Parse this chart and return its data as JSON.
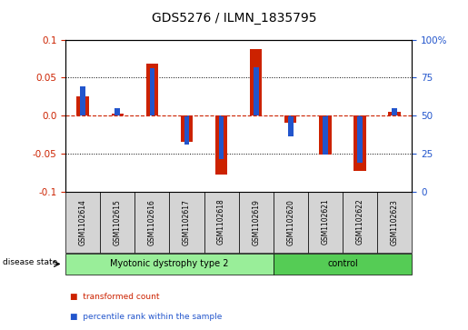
{
  "title": "GDS5276 / ILMN_1835795",
  "samples": [
    "GSM1102614",
    "GSM1102615",
    "GSM1102616",
    "GSM1102617",
    "GSM1102618",
    "GSM1102619",
    "GSM1102620",
    "GSM1102621",
    "GSM1102622",
    "GSM1102623"
  ],
  "red_values": [
    0.025,
    0.002,
    0.068,
    -0.035,
    -0.078,
    0.088,
    -0.01,
    -0.052,
    -0.073,
    0.005
  ],
  "blue_values": [
    0.038,
    0.01,
    0.062,
    -0.038,
    -0.058,
    0.063,
    -0.028,
    -0.052,
    -0.062,
    0.01
  ],
  "red_color": "#cc2200",
  "blue_color": "#2255cc",
  "ylim": [
    -0.1,
    0.1
  ],
  "yticks_left": [
    -0.1,
    -0.05,
    0.0,
    0.05,
    0.1
  ],
  "yticks_right_vals": [
    -0.1,
    -0.05,
    0.0,
    0.05,
    0.1
  ],
  "yticks_right_labels": [
    "0",
    "25",
    "50",
    "75",
    "100%"
  ],
  "ylabel_left_color": "#cc2200",
  "ylabel_right_color": "#2255cc",
  "zero_line_color": "#cc2200",
  "disease_groups": [
    {
      "label": "Myotonic dystrophy type 2",
      "start": 0,
      "end": 5,
      "color": "#99ee99"
    },
    {
      "label": "control",
      "start": 6,
      "end": 9,
      "color": "#55cc55"
    }
  ],
  "disease_state_label": "disease state",
  "legend_items": [
    {
      "label": "transformed count",
      "color": "#cc2200"
    },
    {
      "label": "percentile rank within the sample",
      "color": "#2255cc"
    }
  ],
  "bar_width": 0.35,
  "blue_bar_width": 0.15,
  "title_fontsize": 10
}
